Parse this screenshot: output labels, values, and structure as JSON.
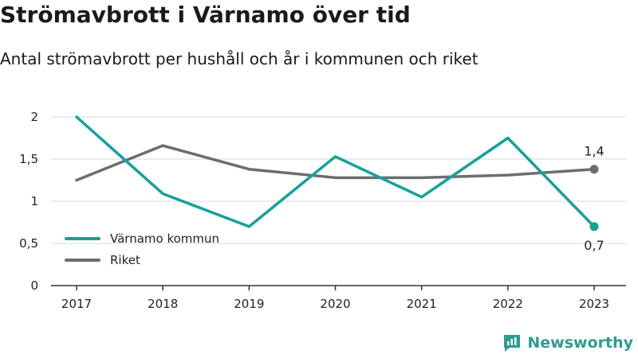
{
  "title": "Strömavbrott i Värnamo över tid",
  "subtitle": "Antal strömavbrott per hushåll och år i kommunen och riket",
  "brand": {
    "name": "Newsworthy",
    "icon": "newsworthy-logo-icon"
  },
  "colors": {
    "varnamo": "#13a29a",
    "riket": "#6d6c72",
    "grid": "#d9d9d9",
    "axis": "#333333",
    "brand": "#2e9c8f"
  },
  "chart_data": {
    "type": "line",
    "x": [
      "2017",
      "2018",
      "2019",
      "2020",
      "2021",
      "2022",
      "2023"
    ],
    "yticks": [
      "0",
      "0,5",
      "1",
      "1,5",
      "2"
    ],
    "ytick_values": [
      0,
      0.5,
      1,
      1.5,
      2
    ],
    "ylim": [
      0,
      2
    ],
    "grid": true,
    "legend_position": "bottom-left",
    "series": [
      {
        "name": "Värnamo kommun",
        "color": "#13a29a",
        "values": [
          2.0,
          1.09,
          0.7,
          1.53,
          1.05,
          1.75,
          0.7
        ],
        "end_label": "0,7"
      },
      {
        "name": "Riket",
        "color": "#6d6c72",
        "values": [
          1.25,
          1.66,
          1.38,
          1.28,
          1.28,
          1.31,
          1.38
        ],
        "end_label": "1,4"
      }
    ]
  }
}
